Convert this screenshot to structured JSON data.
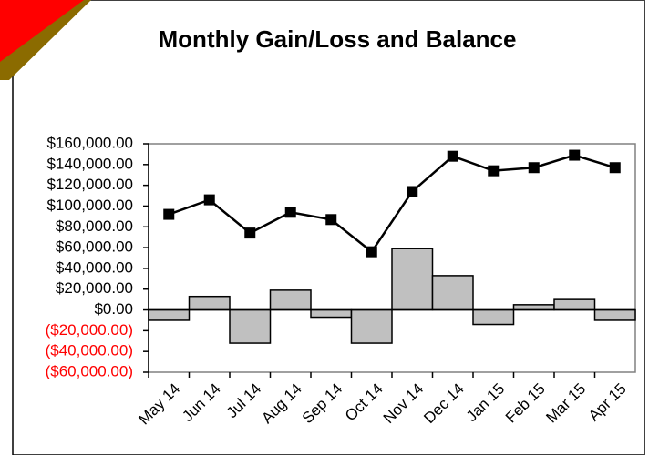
{
  "chart_data": {
    "type": "combo",
    "title": "Monthly Gain/Loss and Balance",
    "categories": [
      "May 14",
      "Jun 14",
      "Jul 14",
      "Aug 14",
      "Sep 14",
      "Oct 14",
      "Nov 14",
      "Dec 14",
      "Jan 15",
      "Feb 15",
      "Mar 15",
      "Apr 15"
    ],
    "series": [
      {
        "type": "bar",
        "color": "#c0c0c0",
        "values": [
          -10000,
          13000,
          -32000,
          19000,
          -7000,
          -32000,
          59000,
          33000,
          -14000,
          5000,
          10000,
          -10000
        ]
      },
      {
        "type": "line",
        "color": "#000000",
        "values": [
          92000,
          106000,
          74000,
          94000,
          87000,
          56000,
          114000,
          148000,
          134000,
          137000,
          149000,
          137000
        ]
      }
    ],
    "ylim": [
      -60000,
      160000
    ],
    "yticks": [
      {
        "value": 160000,
        "label": "$160,000.00"
      },
      {
        "value": 140000,
        "label": "$140,000.00"
      },
      {
        "value": 120000,
        "label": "$120,000.00"
      },
      {
        "value": 100000,
        "label": "$100,000.00"
      },
      {
        "value": 80000,
        "label": "$80,000.00"
      },
      {
        "value": 60000,
        "label": "$60,000.00"
      },
      {
        "value": 40000,
        "label": "$40,000.00"
      },
      {
        "value": 20000,
        "label": "$20,000.00"
      },
      {
        "value": 0,
        "label": "$0.00"
      },
      {
        "value": -20000,
        "label": "($20,000.00)"
      },
      {
        "value": -40000,
        "label": "($40,000.00)"
      },
      {
        "value": -60000,
        "label": "($60,000.00)"
      }
    ],
    "negative_tick_color": "#ff0000",
    "grid": false
  }
}
